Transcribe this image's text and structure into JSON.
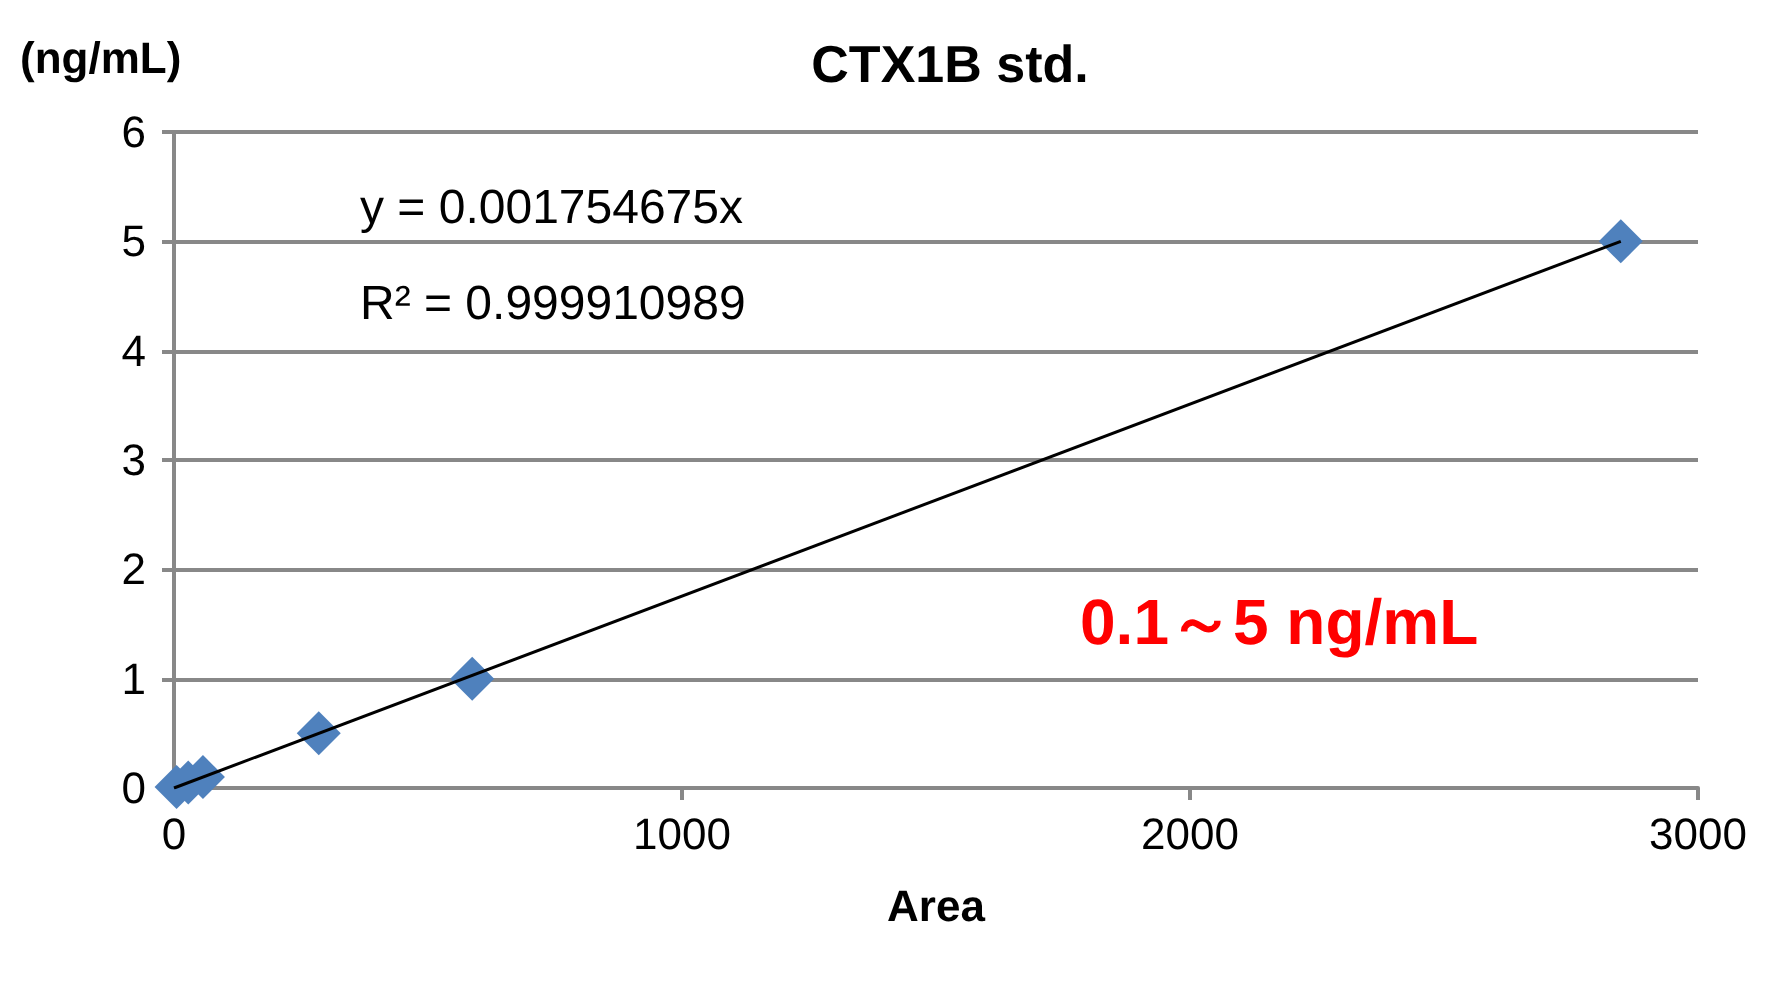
{
  "chart_data": {
    "type": "scatter",
    "title": "CTX1B std.",
    "xlabel": "Area",
    "ylabel": "(ng/mL)",
    "xlim": [
      0,
      3000
    ],
    "xticks": [
      0,
      1000,
      2000,
      3000
    ],
    "ylim": [
      0,
      6
    ],
    "yticks": [
      0,
      1,
      2,
      3,
      4,
      5,
      6
    ],
    "grid": "y",
    "marker": "diamond",
    "series": [
      {
        "color": "#4f81bd",
        "x": [
          5,
          28,
          57,
          285,
          587,
          2848
        ],
        "values": [
          0.01,
          0.05,
          0.1,
          0.5,
          1,
          5
        ]
      },
      {
        "type": "line",
        "color": "#000000",
        "x": [
          0,
          2848
        ],
        "values": [
          0,
          5
        ],
        "marker": "none"
      }
    ],
    "annotations": [
      "y = 0.001754675x",
      "R² = 0.999910989",
      "0.1～5 ng/mL"
    ]
  }
}
